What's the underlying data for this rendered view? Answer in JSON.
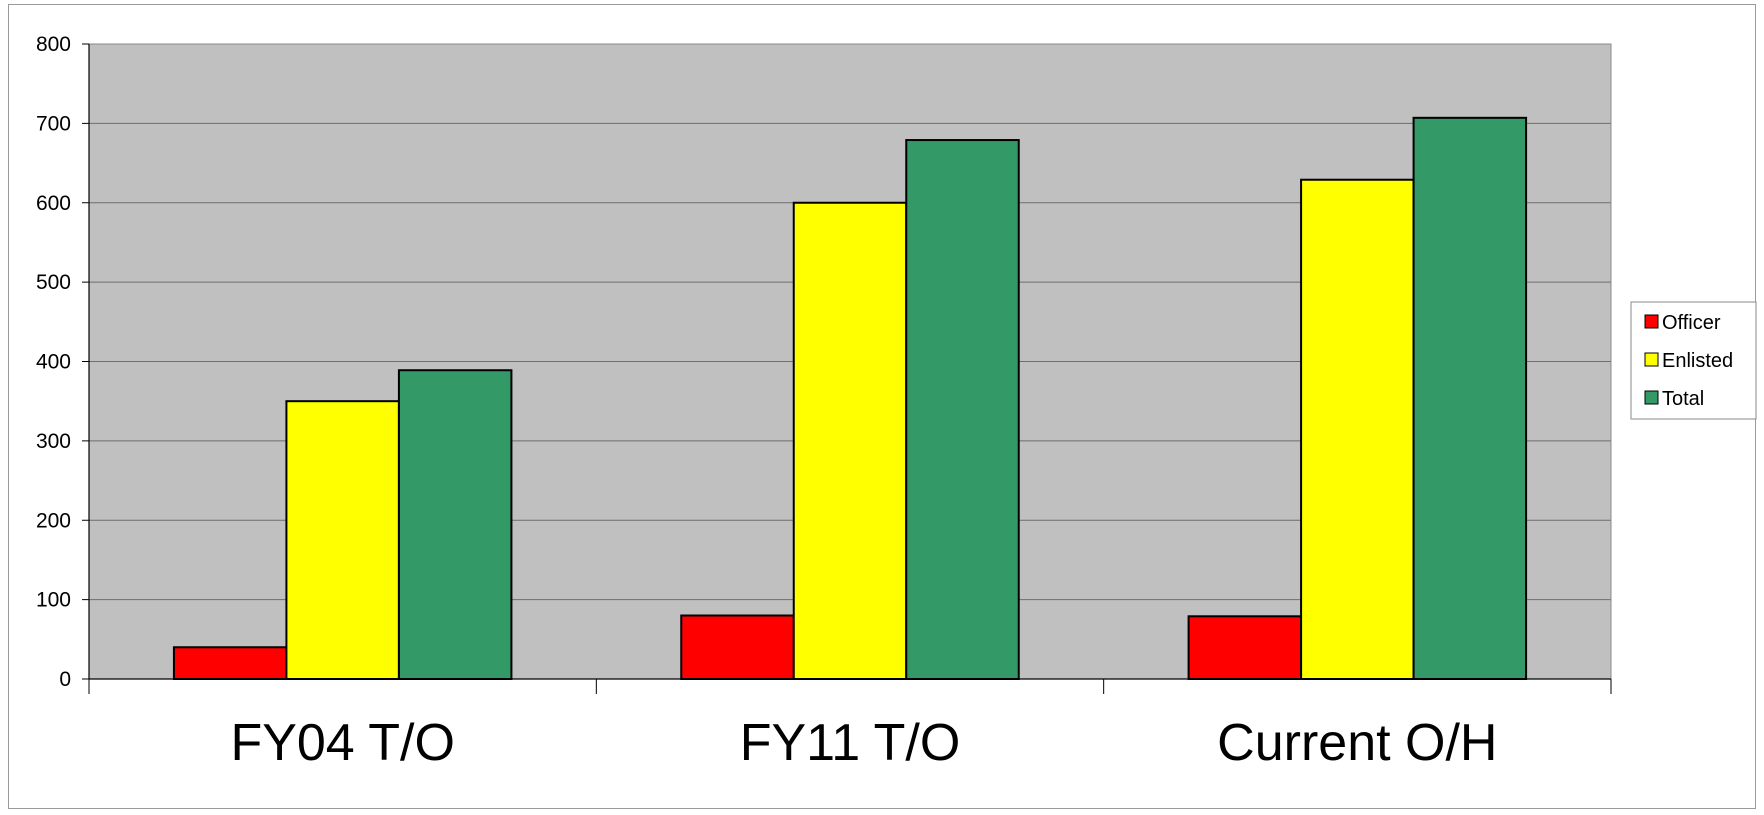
{
  "chart_data": {
    "type": "bar",
    "categories": [
      "FY04 T/O",
      "FY11 T/O",
      "Current O/H"
    ],
    "series": [
      {
        "name": "Officer",
        "values": [
          40,
          80,
          79
        ],
        "color": "#ff0000"
      },
      {
        "name": "Enlisted",
        "values": [
          350,
          600,
          629
        ],
        "color": "#ffff00"
      },
      {
        "name": "Total",
        "values": [
          389,
          679,
          707
        ],
        "color": "#339966"
      }
    ],
    "ylim": [
      0,
      800
    ],
    "yticks": [
      0,
      100,
      200,
      300,
      400,
      500,
      600,
      700,
      800
    ],
    "grid": true,
    "plot_background": "#c0c0c0",
    "legend_position": "right"
  }
}
